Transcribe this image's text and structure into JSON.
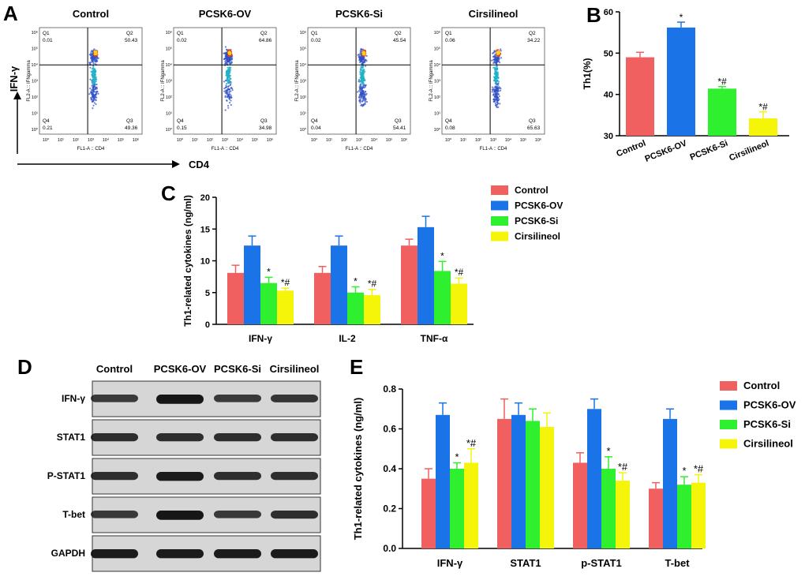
{
  "panel_letters": {
    "a": "A",
    "b": "B",
    "c": "C",
    "d": "D",
    "e": "E"
  },
  "groups": [
    "Control",
    "PCSK6-OV",
    "PCSK6-Si",
    "Cirsilineol"
  ],
  "colors": {
    "control": "#f06060",
    "ov": "#1a74e8",
    "si": "#2ef02e",
    "cir": "#f5f50a"
  },
  "flow": {
    "y_axis_label": "IFN-γ",
    "x_axis_label": "CD4",
    "x_channel": "FL1-A :: CD4",
    "y_channel": "FL2-A :: IFNgamma",
    "tick_labels": [
      "10⁰",
      "10¹",
      "10²",
      "10³",
      "10⁴",
      "10⁵",
      "10⁶"
    ],
    "plots": [
      {
        "title": "Control",
        "q1": "Q1",
        "q1v": "0.01",
        "q2": "Q2",
        "q2v": "50.43",
        "q3": "Q3",
        "q3v": "49.36",
        "q4": "Q4",
        "q4v": "0.21"
      },
      {
        "title": "PCSK6-OV",
        "q1": "Q1",
        "q1v": "0.02",
        "q2": "Q2",
        "q2v": "64.86",
        "q3": "Q3",
        "q3v": "34.98",
        "q4": "Q4",
        "q4v": "0.15"
      },
      {
        "title": "PCSK6-Si",
        "q1": "Q1",
        "q1v": "0.02",
        "q2": "Q2",
        "q2v": "45.54",
        "q3": "Q3",
        "q3v": "54.41",
        "q4": "Q4",
        "q4v": "0.04"
      },
      {
        "title": "Cirsilineol",
        "q1": "Q1",
        "q1v": "0.06",
        "q2": "Q2",
        "q2v": "34.22",
        "q3": "Q3",
        "q3v": "65.63",
        "q4": "Q4",
        "q4v": "0.08"
      }
    ]
  },
  "blot": {
    "rows": [
      "IFN-γ",
      "STAT1",
      "P-STAT1",
      "T-bet",
      "GAPDH"
    ],
    "intensity": [
      [
        0.8,
        0.98,
        0.8,
        0.82
      ],
      [
        0.85,
        0.85,
        0.85,
        0.85
      ],
      [
        0.85,
        0.95,
        0.85,
        0.85
      ],
      [
        0.8,
        0.98,
        0.8,
        0.85
      ],
      [
        0.95,
        0.95,
        0.95,
        0.95
      ]
    ]
  },
  "chart_data": [
    {
      "panel": "B",
      "type": "bar",
      "title": "",
      "categories": [
        "Control",
        "PCSK6-OV",
        "PCSK6-Si",
        "Cirsilineol"
      ],
      "values": [
        49,
        56.2,
        41.4,
        34.2
      ],
      "errors": [
        1.2,
        1.3,
        0.5,
        1.6
      ],
      "annotations": [
        "",
        "*",
        "*#",
        "*#"
      ],
      "ylabel": "Th1(%)",
      "xlabel": "",
      "ylim": [
        30,
        60
      ],
      "yticks": [
        30,
        40,
        50,
        60
      ],
      "ytick_labels": [
        "30",
        "40",
        "50",
        "60"
      ]
    },
    {
      "panel": "C",
      "type": "bar",
      "categories": [
        "IFN-γ",
        "IL-2",
        "TNF-α"
      ],
      "series": [
        {
          "name": "Control",
          "values": [
            8.1,
            8.1,
            12.4
          ],
          "errors": [
            1.2,
            1.0,
            1.0
          ],
          "annotations": [
            "",
            "",
            ""
          ]
        },
        {
          "name": "PCSK6-OV",
          "values": [
            12.4,
            12.4,
            15.3
          ],
          "errors": [
            1.5,
            1.5,
            1.7
          ],
          "annotations": [
            "",
            "",
            ""
          ]
        },
        {
          "name": "PCSK6-Si",
          "values": [
            6.5,
            5.0,
            8.4
          ],
          "errors": [
            0.9,
            0.9,
            1.5
          ],
          "annotations": [
            "*",
            "*",
            "*"
          ]
        },
        {
          "name": "Cirsilineol",
          "values": [
            5.3,
            4.6,
            6.4
          ],
          "errors": [
            0.4,
            0.9,
            0.9
          ],
          "annotations": [
            "*#",
            "*#",
            "*#"
          ]
        }
      ],
      "ylabel": "Th1-related cytokines  (ng/ml)",
      "xlabel": "",
      "ylim": [
        0,
        20
      ],
      "yticks": [
        0,
        5,
        10,
        15,
        20
      ],
      "ytick_labels": [
        "0",
        "5",
        "10",
        "15",
        "20"
      ],
      "legend_position": "right"
    },
    {
      "panel": "E",
      "type": "bar",
      "categories": [
        "IFN-γ",
        "STAT1",
        "p-STAT1",
        "T-bet"
      ],
      "series": [
        {
          "name": "Control",
          "values": [
            0.35,
            0.65,
            0.43,
            0.3
          ],
          "errors": [
            0.05,
            0.1,
            0.05,
            0.03
          ],
          "annotations": [
            "",
            "",
            "",
            ""
          ]
        },
        {
          "name": "PCSK6-OV",
          "values": [
            0.67,
            0.67,
            0.7,
            0.65
          ],
          "errors": [
            0.06,
            0.06,
            0.05,
            0.05
          ],
          "annotations": [
            "",
            "",
            "",
            ""
          ]
        },
        {
          "name": "PCSK6-Si",
          "values": [
            0.4,
            0.64,
            0.4,
            0.32
          ],
          "errors": [
            0.03,
            0.06,
            0.06,
            0.04
          ],
          "annotations": [
            "*",
            "",
            "*",
            "*"
          ]
        },
        {
          "name": "Cirsilineol",
          "values": [
            0.43,
            0.61,
            0.34,
            0.33
          ],
          "errors": [
            0.07,
            0.07,
            0.04,
            0.04
          ],
          "annotations": [
            "*#",
            "",
            "*#",
            "*#"
          ]
        }
      ],
      "ylabel": "Th1-related cytokines  (ng/ml)",
      "xlabel": "",
      "ylim": [
        0,
        0.8
      ],
      "yticks": [
        0,
        0.2,
        0.4,
        0.6,
        0.8
      ],
      "ytick_labels": [
        "0.0",
        "0.2",
        "0.4",
        "0.6",
        "0.8"
      ],
      "legend_position": "right"
    }
  ]
}
